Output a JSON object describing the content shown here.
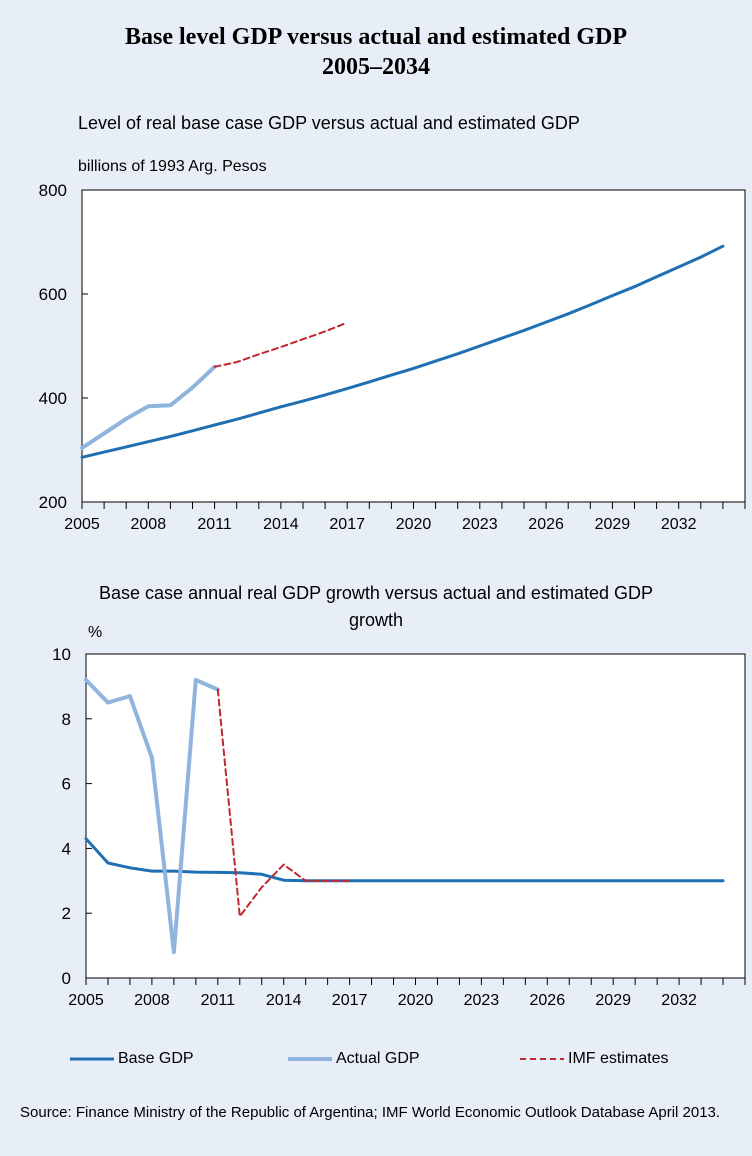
{
  "figure": {
    "title_line1": "Base level GDP versus actual and estimated GDP",
    "title_line2": "2005–2034",
    "source": "Source: Finance Ministry of the Republic of Argentina; IMF World Economic Outlook Database April 2013."
  },
  "legend": {
    "base": "Base GDP",
    "actual": "Actual GDP",
    "imf": "IMF estimates"
  },
  "colors": {
    "base": "#1f6fb2",
    "actual": "#8fb4dd",
    "imf": "#c0282d",
    "background": "#e8eef8"
  },
  "chart_data": [
    {
      "type": "line",
      "title": "Level of real base case GDP versus actual and estimated GDP",
      "ylabel": "billions of 1993 Arg. Pesos",
      "xlim": [
        2005,
        2035
      ],
      "ylim": [
        200,
        800
      ],
      "yticks": [
        200,
        400,
        600,
        800
      ],
      "xticks": [
        2005,
        2008,
        2011,
        2014,
        2017,
        2020,
        2023,
        2026,
        2029,
        2032
      ],
      "grid": false,
      "series": [
        {
          "name": "Base GDP",
          "x": [
            2005,
            2006,
            2007,
            2008,
            2009,
            2010,
            2011,
            2012,
            2013,
            2014,
            2015,
            2016,
            2017,
            2018,
            2019,
            2020,
            2021,
            2022,
            2023,
            2024,
            2025,
            2026,
            2027,
            2028,
            2029,
            2030,
            2031,
            2032,
            2033,
            2034
          ],
          "y": [
            286,
            296,
            306,
            316,
            326,
            337,
            348,
            359,
            371,
            383,
            394,
            406,
            418,
            431,
            444,
            457,
            471,
            485,
            500,
            515,
            530,
            546,
            562,
            579,
            597,
            614,
            633,
            652,
            671,
            692
          ]
        },
        {
          "name": "Actual GDP",
          "x": [
            2005,
            2006,
            2007,
            2008,
            2009,
            2010,
            2011
          ],
          "y": [
            304,
            332,
            360,
            384,
            386,
            420,
            460
          ]
        },
        {
          "name": "IMF estimates",
          "x": [
            2011,
            2012,
            2013,
            2014,
            2015,
            2016,
            2017
          ],
          "y": [
            460,
            469,
            484,
            498,
            513,
            528,
            545
          ]
        }
      ]
    },
    {
      "type": "line",
      "title": "Base case annual real GDP growth versus actual and estimated GDP growth",
      "ylabel": "%",
      "xlim": [
        2005,
        2035
      ],
      "ylim": [
        0,
        10
      ],
      "yticks": [
        0,
        2,
        4,
        6,
        8,
        10
      ],
      "xticks": [
        2005,
        2008,
        2011,
        2014,
        2017,
        2020,
        2023,
        2026,
        2029,
        2032
      ],
      "grid": false,
      "series": [
        {
          "name": "Base GDP",
          "x": [
            2005,
            2006,
            2007,
            2008,
            2009,
            2010,
            2011,
            2012,
            2013,
            2014,
            2015,
            2016,
            2017,
            2018,
            2019,
            2020,
            2021,
            2022,
            2023,
            2024,
            2025,
            2026,
            2027,
            2028,
            2029,
            2030,
            2031,
            2032,
            2033,
            2034
          ],
          "y": [
            4.3,
            3.55,
            3.4,
            3.3,
            3.3,
            3.27,
            3.26,
            3.25,
            3.2,
            3.02,
            3.0,
            3.0,
            3.0,
            3.0,
            3.0,
            3.0,
            3.0,
            3.0,
            3.0,
            3.0,
            3.0,
            3.0,
            3.0,
            3.0,
            3.0,
            3.0,
            3.0,
            3.0,
            3.0,
            3.0
          ]
        },
        {
          "name": "Actual GDP",
          "x": [
            2005,
            2006,
            2007,
            2008,
            2009,
            2010,
            2011
          ],
          "y": [
            9.2,
            8.5,
            8.7,
            6.8,
            0.8,
            9.2,
            8.9
          ]
        },
        {
          "name": "IMF estimates",
          "x": [
            2011,
            2012,
            2013,
            2014,
            2015,
            2016,
            2017
          ],
          "y": [
            8.9,
            1.9,
            2.8,
            3.5,
            3.0,
            3.0,
            3.0
          ]
        }
      ]
    }
  ]
}
